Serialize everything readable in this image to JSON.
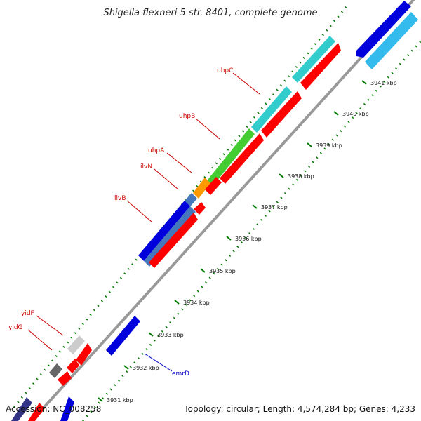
{
  "title": "Shigella flexneri 5 str. 8401, complete genome",
  "footer": {
    "accession": "Accession: NC_008258",
    "summary": "Topology: circular; Length: 4,574,284 bp; Genes: 4,233"
  },
  "colors": {
    "forward_cds_red": "#ff0000",
    "reverse_blue": "#0000dd",
    "cyan": "#33cccc",
    "light_blue": "#33bbee",
    "green": "#44cc33",
    "orange": "#ff9900",
    "steel_blue": "#4477bb",
    "gray": "#cccccc",
    "dark_gray": "#666666",
    "backbone": "#999999",
    "tick_green": "#007700"
  },
  "ticks": [
    {
      "label": "3931 kbp"
    },
    {
      "label": "3932 kbp"
    },
    {
      "label": "3933 kbp"
    },
    {
      "label": "3934 kbp"
    },
    {
      "label": "3935 kbp"
    },
    {
      "label": "3936 kbp"
    },
    {
      "label": "3937 kbp"
    },
    {
      "label": "3938 kbp"
    },
    {
      "label": "3939 kbp"
    },
    {
      "label": "3940 kbp"
    },
    {
      "label": "3941 kbp"
    }
  ],
  "gene_labels": [
    {
      "name": "uhpC"
    },
    {
      "name": "uhpB"
    },
    {
      "name": "uhpA"
    },
    {
      "name": "ilvN"
    },
    {
      "name": "ilvB"
    },
    {
      "name": "yidF"
    },
    {
      "name": "yidG"
    },
    {
      "name": "emrD"
    }
  ]
}
